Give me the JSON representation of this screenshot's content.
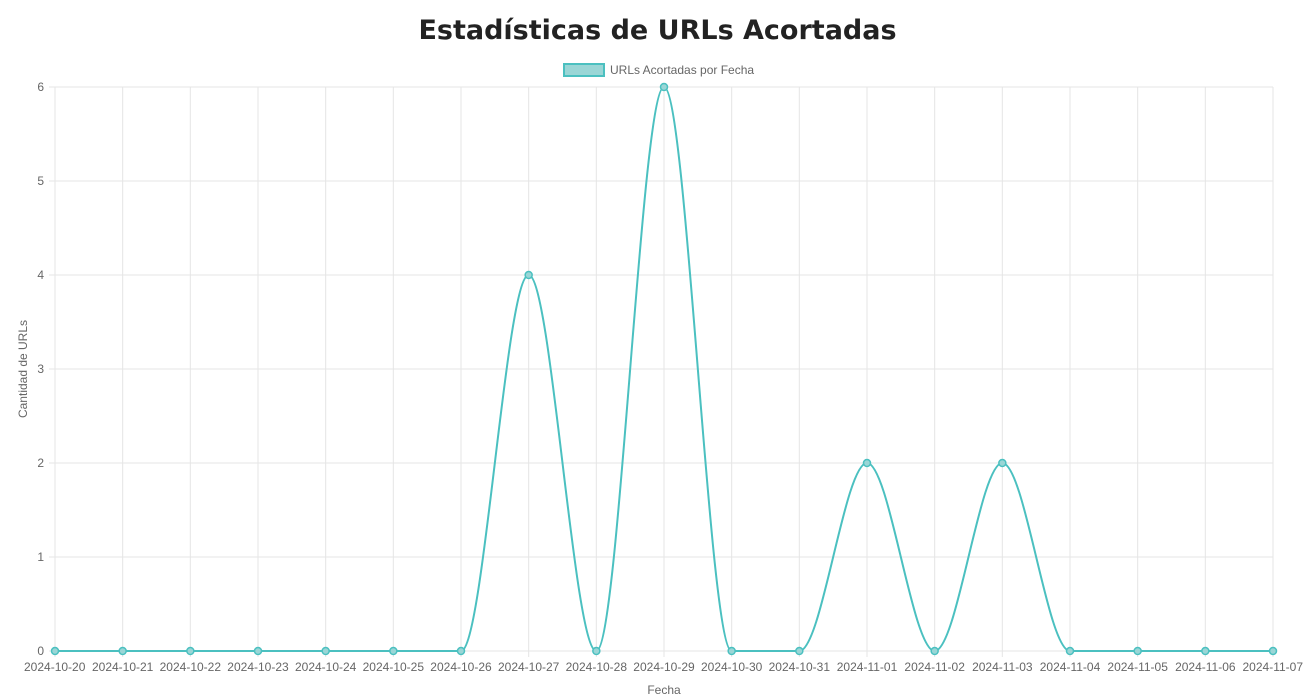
{
  "page": {
    "title": "Estadísticas de URLs Acortadas"
  },
  "colors": {
    "line": "#4bc0c0",
    "fill": "#9ad6d6",
    "grid": "#e5e5e5",
    "text": "#666666",
    "title": "#222222"
  },
  "chart_data": {
    "type": "line",
    "title": "",
    "xlabel": "Fecha",
    "ylabel": "Cantidad de URLs",
    "ylim": [
      0,
      6
    ],
    "yticks": [
      0,
      1,
      2,
      3,
      4,
      5,
      6
    ],
    "grid": true,
    "legend_position": "top-center",
    "smooth": true,
    "categories": [
      "2024-10-20",
      "2024-10-21",
      "2024-10-22",
      "2024-10-23",
      "2024-10-24",
      "2024-10-25",
      "2024-10-26",
      "2024-10-27",
      "2024-10-28",
      "2024-10-29",
      "2024-10-30",
      "2024-10-31",
      "2024-11-01",
      "2024-11-02",
      "2024-11-03",
      "2024-11-04",
      "2024-11-05",
      "2024-11-06",
      "2024-11-07"
    ],
    "series": [
      {
        "name": "URLs Acortadas por Fecha",
        "values": [
          0,
          0,
          0,
          0,
          0,
          0,
          0,
          4,
          0,
          6,
          0,
          0,
          2,
          0,
          2,
          0,
          0,
          0,
          0
        ]
      }
    ]
  }
}
